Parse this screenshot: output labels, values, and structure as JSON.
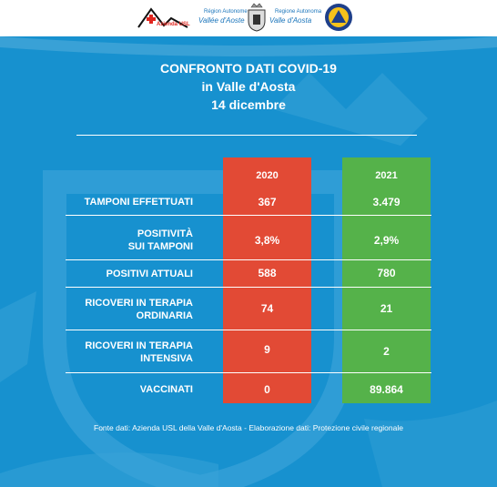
{
  "header": {
    "logo1_text": "Azienda USL",
    "logo2_small": "Région Autonome",
    "logo2_big": "Vallée d'Aoste",
    "logo3_small": "Regione Autonoma",
    "logo3_big": "Valle d'Aosta"
  },
  "title": {
    "line1": "CONFRONTO DATI COVID-19",
    "line2": "in Valle d'Aosta",
    "line3": "14 dicembre"
  },
  "table": {
    "col_2020": "2020",
    "col_2021": "2021",
    "rows": [
      {
        "label_line1": "TAMPONI  EFFETTUATI",
        "label_line2": "",
        "v2020": "367",
        "v2021": "3.479"
      },
      {
        "label_line1": "POSITIVITÀ",
        "label_line2": "SUI TAMPONI",
        "v2020": "3,8%",
        "v2021": "2,9%"
      },
      {
        "label_line1": "POSITIVI ATTUALI",
        "label_line2": "",
        "v2020": "588",
        "v2021": "780"
      },
      {
        "label_line1": "RICOVERI IN TERAPIA",
        "label_line2": "ORDINARIA",
        "v2020": "74",
        "v2021": "21"
      },
      {
        "label_line1": "RICOVERI IN TERAPIA",
        "label_line2": "INTENSIVA",
        "v2020": "9",
        "v2021": "2"
      },
      {
        "label_line1": "VACCINATI",
        "label_line2": "",
        "v2020": "0",
        "v2021": "89.864"
      }
    ]
  },
  "footer": "Fonte dati: Azienda USL della Valle d'Aosta - Elaborazione dati: Protezione civile regionale",
  "colors": {
    "panel_blue": "#1791cf",
    "col_2020_red": "#e24a35",
    "col_2021_green": "#55b24a"
  }
}
